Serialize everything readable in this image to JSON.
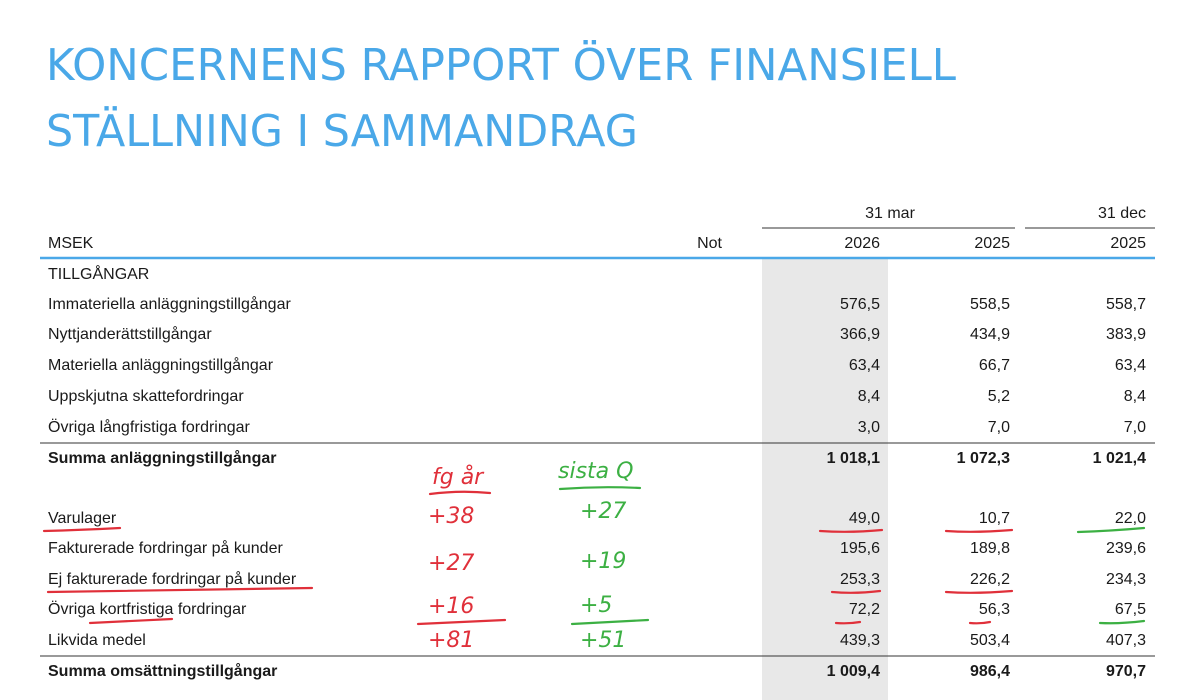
{
  "header": {
    "title_lines": [
      "KONCERNENS RAPPORT ÖVER FINANSIELL",
      "STÄLLNING I SAMMANDRAG"
    ]
  },
  "table": {
    "unit": "MSEK",
    "note": "Not",
    "groups": [
      {
        "label": "31 mar",
        "years": [
          "2026",
          "2025"
        ]
      },
      {
        "label": "31 dec",
        "years": [
          "2025"
        ]
      }
    ],
    "section": "TILLGÅNGAR",
    "rows": [
      [
        "Immateriella anläggningstillgångar",
        "576,5",
        "558,5",
        "558,7"
      ],
      [
        "Nyttjanderättstillgångar",
        "366,9",
        "434,9",
        "383,9"
      ],
      [
        "Materiella anläggningstillgångar",
        "63,4",
        "66,7",
        "63,4"
      ],
      [
        "Uppskjutna skattefordringar",
        "8,4",
        "5,2",
        "8,4"
      ],
      [
        "Övriga långfristiga fordringar",
        "3,0",
        "7,0",
        "7,0"
      ],
      [
        "Summa anläggningstillgångar",
        "1 018,1",
        "1 072,3",
        "1 021,4"
      ],
      [
        "Varulager",
        "49,0",
        "10,7",
        "22,0"
      ],
      [
        "Fakturerade fordringar på kunder",
        "195,6",
        "189,8",
        "239,6"
      ],
      [
        "Ej fakturerade fordringar på kunder",
        "253,3",
        "226,2",
        "234,3"
      ],
      [
        "Övriga kortfristiga fordringar",
        "72,2",
        "56,3",
        "67,5"
      ],
      [
        "Likvida medel",
        "439,3",
        "503,4",
        "407,3"
      ],
      [
        "Summa omsättningstillgångar",
        "1 009,4",
        "986,4",
        "970,7"
      ]
    ]
  },
  "annotations": {
    "red_heading": "fg år",
    "green_heading": "sista Q",
    "red": [
      "+38",
      "+27",
      "+16",
      "+81"
    ],
    "green": [
      "+27",
      "+19",
      "+5",
      "+51"
    ]
  }
}
